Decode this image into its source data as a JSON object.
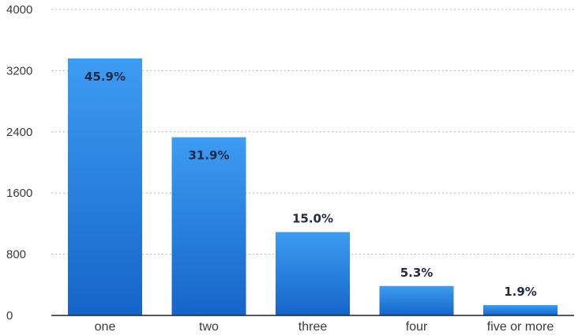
{
  "chart_data": {
    "type": "bar",
    "categories": [
      "one",
      "two",
      "three",
      "four",
      "five or more"
    ],
    "values": [
      3360,
      2330,
      1090,
      385,
      135
    ],
    "data_labels": [
      "45.9%",
      "31.9%",
      "15.0%",
      "5.3%",
      "1.9%"
    ],
    "y_ticks": [
      "0",
      "800",
      "1600",
      "2400",
      "3200",
      "4000"
    ],
    "ylim": [
      0,
      4000
    ],
    "grid": true,
    "bar_color_top": "#3d9cf2",
    "bar_color_bottom": "#1565c8",
    "title": "",
    "xlabel": "",
    "ylabel": ""
  }
}
